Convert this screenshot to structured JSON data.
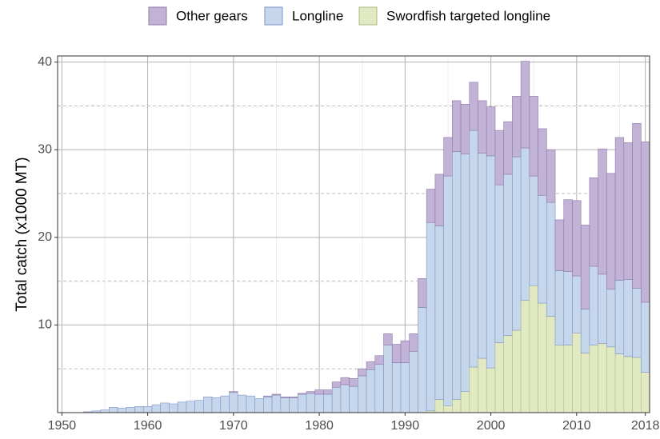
{
  "chart_data": {
    "type": "stacked_bar",
    "ylabel": "Total catch (x1000 MT)",
    "x": [
      1950,
      1951,
      1952,
      1953,
      1954,
      1955,
      1956,
      1957,
      1958,
      1959,
      1960,
      1961,
      1962,
      1963,
      1964,
      1965,
      1966,
      1967,
      1968,
      1969,
      1970,
      1971,
      1972,
      1973,
      1974,
      1975,
      1976,
      1977,
      1978,
      1979,
      1980,
      1981,
      1982,
      1983,
      1984,
      1985,
      1986,
      1987,
      1988,
      1989,
      1990,
      1991,
      1992,
      1993,
      1994,
      1995,
      1996,
      1997,
      1998,
      1999,
      2000,
      2001,
      2002,
      2003,
      2004,
      2005,
      2006,
      2007,
      2008,
      2009,
      2010,
      2011,
      2012,
      2013,
      2014,
      2015,
      2016,
      2017,
      2018
    ],
    "series": [
      {
        "name": "Other gears",
        "color": "#c1b2d6",
        "stroke": "#8c78ab",
        "values": [
          0,
          0,
          0,
          0,
          0,
          0,
          0,
          0,
          0,
          0,
          0,
          0,
          0,
          0,
          0,
          0,
          0,
          0,
          0,
          0,
          0.1,
          0,
          0,
          0,
          0.1,
          0.1,
          0.1,
          0.1,
          0.1,
          0.2,
          0.5,
          0.5,
          0.6,
          0.8,
          0.9,
          0.8,
          0.9,
          1.0,
          1.3,
          2.1,
          2.5,
          2.0,
          3.3,
          3.8,
          5.9,
          4.4,
          5.8,
          5.7,
          5.5,
          6.0,
          5.6,
          6.2,
          6.0,
          6.9,
          9.9,
          9.1,
          7.6,
          6.0,
          5.8,
          8.2,
          8.6,
          9.6,
          10.1,
          14.3,
          13.2,
          16.3,
          15.6,
          18.8,
          18.3
        ]
      },
      {
        "name": "Longline",
        "color": "#c6d7eb",
        "stroke": "#7d93c9",
        "values": [
          0,
          0,
          0,
          0.1,
          0.2,
          0.3,
          0.6,
          0.5,
          0.6,
          0.7,
          0.7,
          0.9,
          1.1,
          1.0,
          1.2,
          1.3,
          1.4,
          1.8,
          1.7,
          1.9,
          2.3,
          2.0,
          1.9,
          1.6,
          1.8,
          2.0,
          1.7,
          1.7,
          2.1,
          2.2,
          2.1,
          2.1,
          2.9,
          3.2,
          3.0,
          4.2,
          4.9,
          5.5,
          7.7,
          5.7,
          5.7,
          7.0,
          12.0,
          21.5,
          19.8,
          26.2,
          28.3,
          27.1,
          27.0,
          23.4,
          24.2,
          18.0,
          18.4,
          19.8,
          17.4,
          12.5,
          12.3,
          13.0,
          8.5,
          8.4,
          6.5,
          5.0,
          9.0,
          7.9,
          6.6,
          8.4,
          8.8,
          7.9,
          8.0
        ]
      },
      {
        "name": "Swordfish targeted longline",
        "color": "#e0e9c2",
        "stroke": "#adbe84",
        "values": [
          0,
          0,
          0,
          0,
          0,
          0,
          0,
          0,
          0,
          0,
          0,
          0,
          0,
          0,
          0,
          0,
          0,
          0,
          0,
          0,
          0,
          0,
          0,
          0,
          0,
          0,
          0,
          0,
          0,
          0,
          0,
          0,
          0,
          0,
          0,
          0,
          0,
          0,
          0,
          0,
          0,
          0,
          0,
          0.2,
          1.5,
          0.8,
          1.5,
          2.4,
          5.2,
          6.2,
          5.1,
          8.0,
          8.8,
          9.4,
          12.8,
          14.5,
          12.5,
          11.0,
          7.7,
          7.7,
          9.1,
          6.8,
          7.7,
          7.9,
          7.5,
          6.7,
          6.4,
          6.3,
          4.6
        ]
      }
    ],
    "xlim": [
      1949.5,
      2018.5
    ],
    "xticks": [
      1950,
      1960,
      1970,
      1980,
      1990,
      2000,
      2010,
      2018
    ],
    "xminorticks": [
      1955,
      1965,
      1975,
      1985,
      1995,
      2005,
      2015
    ],
    "ylim": [
      0,
      40.7
    ],
    "yticks": [
      10,
      20,
      30,
      40
    ],
    "yminorticks": [
      5,
      15,
      25,
      35
    ],
    "grid": true,
    "legend": "top"
  }
}
